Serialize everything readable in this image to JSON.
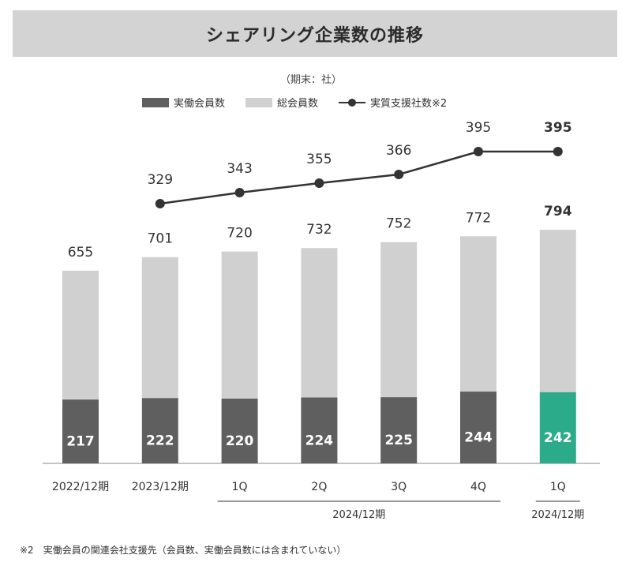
{
  "title": "シェアリング企業数の推移",
  "unit_note": "（期末：社）",
  "legend": {
    "active": "実働会員数",
    "total": "総会員数",
    "supported": "実質支援社数※2"
  },
  "colors": {
    "active": "#5f5f5f",
    "total": "#d0d0d0",
    "highlight": "#2bab8a",
    "line": "#333333",
    "title_bg": "#d3d3d3"
  },
  "footnote": "※2　実働会員の関連会社支援先（会員数、実働会員数には含まれていない）",
  "chart_data": {
    "type": "bar",
    "categories": [
      "2022/12期",
      "2023/12期",
      "1Q",
      "2Q",
      "3Q",
      "4Q",
      "1Q"
    ],
    "groups": [
      {
        "label": "2024/12期",
        "from": 2,
        "to": 5
      },
      {
        "label": "2024/12期",
        "from": 6,
        "to": 6
      }
    ],
    "series": [
      {
        "name": "総会員数",
        "type": "bar",
        "values": [
          655,
          701,
          720,
          732,
          752,
          772,
          794
        ]
      },
      {
        "name": "実働会員数",
        "type": "bar",
        "values": [
          217,
          222,
          220,
          224,
          225,
          244,
          242
        ]
      },
      {
        "name": "実質支援社数※2",
        "type": "line",
        "values": [
          null,
          329,
          343,
          355,
          366,
          395,
          395
        ]
      }
    ],
    "highlight_index": 6,
    "ylim": [
      0,
      800
    ],
    "grid": false
  }
}
